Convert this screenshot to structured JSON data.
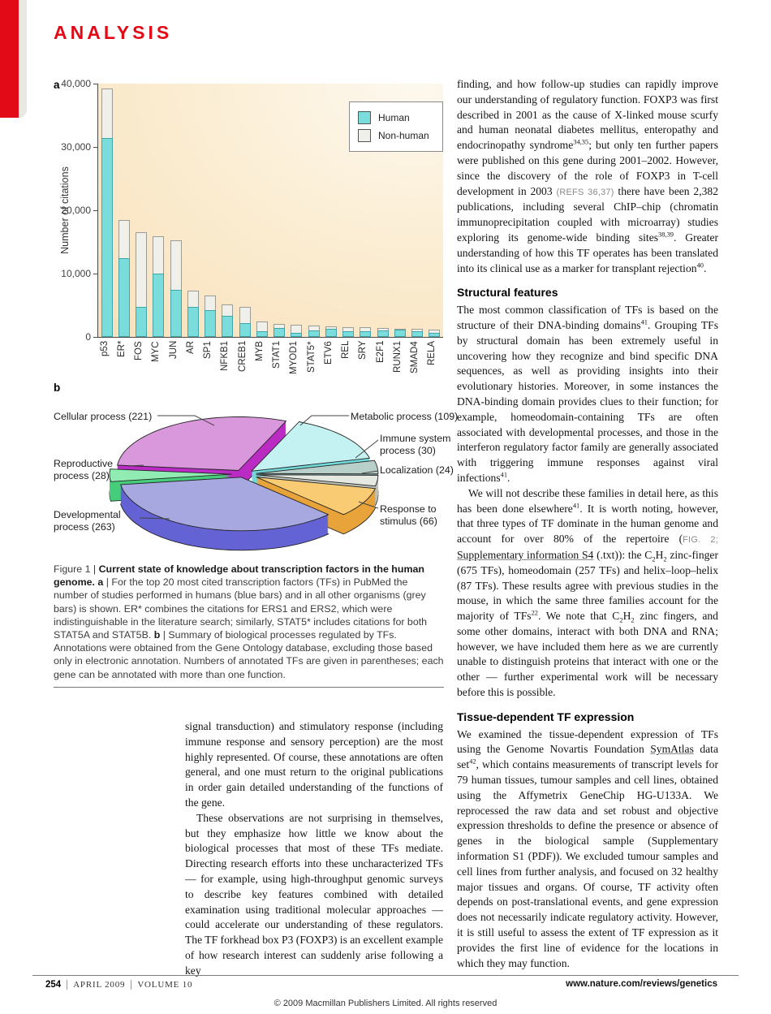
{
  "header": {
    "section_label": "ANALYSIS"
  },
  "figure": {
    "panel_a_label": "a",
    "panel_b_label": "b",
    "caption": "Figure 1 | **Current state of knowledge about transcription factors in the human genome. a** | For the top 20 most cited transcription factors (TFs) in PubMed the number of studies performed in humans (blue bars) and in all other organisms (grey bars) is shown. ER* combines the citations for ERS1 and ERS2, which were indistinguishable in the literature search; similarly, STAT5* includes citations for both STAT5A and STAT5B. **b** | Summary of biological processes regulated by TFs. Annotations were obtained from the Gene Ontology database, excluding those based only in electronic annotation. Numbers of annotated TFs are given in parentheses; each gene can be annotated with more than one function."
  },
  "chart_data": [
    {
      "type": "bar",
      "stacked": true,
      "ylabel": "Number of citations",
      "ylim": [
        0,
        40000
      ],
      "yticks": [
        "0",
        "10,000",
        "20,000",
        "30,000",
        "40,000"
      ],
      "legend_position": "top-right",
      "categories": [
        "p53",
        "ER*",
        "FOS",
        "MYC",
        "JUN",
        "AR",
        "SP1",
        "NFKB1",
        "CREB1",
        "MYB",
        "STAT1",
        "MYOD1",
        "STAT5*",
        "ETV6",
        "REL",
        "SRY",
        "E2F1",
        "RUNX1",
        "SMAD4",
        "RELA"
      ],
      "series": [
        {
          "name": "Human",
          "color": "#7adcdb",
          "values": [
            31400,
            12500,
            4700,
            10000,
            7500,
            4700,
            4200,
            3400,
            2200,
            950,
            1450,
            600,
            1050,
            1350,
            900,
            900,
            1050,
            1150,
            900,
            600
          ]
        },
        {
          "name": "Non-human",
          "color": "#eef0e9",
          "values": [
            7900,
            6000,
            11800,
            5900,
            7700,
            2600,
            2300,
            1700,
            2500,
            1450,
            650,
            1350,
            800,
            350,
            700,
            650,
            400,
            200,
            400,
            500
          ]
        }
      ]
    },
    {
      "type": "pie",
      "style": "3d-exploded",
      "slices": [
        {
          "id": "cellular",
          "label": "Cellular process",
          "value": 221,
          "color": "#d998dc",
          "side_color": "#bb2cc4"
        },
        {
          "id": "metabolic",
          "label": "Metabolic process",
          "value": 109,
          "color": "#c4f1f2",
          "side_color": "#73d8d8"
        },
        {
          "id": "immune",
          "label": "Immune system process",
          "value": 30,
          "color": "#b9cfc9",
          "side_color": "#77a29b"
        },
        {
          "id": "localization",
          "label": "Localization",
          "value": 24,
          "color": "#e6e9e1",
          "side_color": "#bcc1b6"
        },
        {
          "id": "response",
          "label": "Response to stimulus",
          "value": 66,
          "color": "#f9cb72",
          "side_color": "#e8a33a"
        },
        {
          "id": "developmental",
          "label": "Developmental process",
          "value": 263,
          "color": "#a8a8e0",
          "side_color": "#6463d4"
        },
        {
          "id": "reproductive",
          "label": "Reproductive process",
          "value": 28,
          "color": "#90ecb2",
          "side_color": "#47cd7c"
        }
      ]
    }
  ],
  "columns": {
    "left": {
      "p1": "signal transduction) and stimulatory response (including immune response and sensory perception) are the most highly represented. Of course, these annotations are often general, and one must return to the original publications in order gain detailed understanding of the functions of the gene.",
      "p2": "These observations are not surprising in themselves, but they emphasize how little we know about the biological processes that most of these TFs mediate. Directing research efforts into these uncharacterized TFs — for example, using high-throughput genomic surveys to describe key features combined with detailed examination using traditional molecular approaches — could accelerate our understanding of these regulators. The TF forkhead box P3 (FOXP3) is an excellent example of how research interest can suddenly arise following a key"
    },
    "right": {
      "p1": "finding, and how follow-up studies can rapidly improve our understanding of regulatory function. FOXP3 was first described in 2001 as the cause of X-linked mouse scurfy and human neonatal diabetes mellitus, enteropathy and endocrinopathy syndrome^{34,35}; but only ten further papers were published on this gene during 2001–2002. However, since the discovery of the role of FOXP3 in T-cell development in 2003 {{(REFS 36,37)}} there have been 2,382 publications, including several ChIP–chip (chromatin immunoprecipitation coupled with microarray) studies exploring its genome-wide binding sites^{38,39}. Greater understanding of how this TF operates has been translated into its clinical use as a marker for transplant rejection^{40}.",
      "h1": "Structural features",
      "p2": "The most common classification of TFs is based on the structure of their DNA-binding domains^{41}. Grouping TFs by structural domain has been extremely useful in uncovering how they recognize and bind specific DNA sequences, as well as providing insights into their evolutionary histories. Moreover, in some instances the DNA-binding domain provides clues to their function; for example, homeodomain-containing TFs are often associated with developmental processes, and those in the interferon regulatory factor family are generally associated with triggering immune responses against viral infections^{41}.",
      "p3": "We will not describe these families in detail here, as this has been done elsewhere^{41}. It is worth noting, however, that three types of TF dominate in the human genome and account for over 80% of the repertoire ({{FIG. 2;}} [[Supplementary information S4]] (.txt)): the C~{2}H~{2} zinc-finger (675 TFs), homeodomain (257 TFs) and helix–loop–helix (87 TFs). These results agree with previous studies in the mouse, in which the same three families account for the majority of TFs^{22}. We note that C~{2}H~{2} zinc fingers, and some other domains, interact with both DNA and RNA; however, we have included them here as we are currently unable to distinguish proteins that interact with one or the other — further experimental work will be necessary before this is possible.",
      "h2": "Tissue-dependent TF expression",
      "p4": "We examined the tissue-dependent expression of TFs using the Genome Novartis Foundation [[SymAtlas]] data set^{42}, which contains measurements of transcript levels for 79 human tissues, tumour samples and cell lines, obtained using the Affymetrix GeneChip HG-U133A. We reprocessed the raw data and set robust and objective expression thresholds to define the presence or absence of genes in the biological sample (Supplementary information S1 (PDF)). We excluded tumour samples and cell lines from further analysis, and focused on 32 healthy major tissues and organs. Of course, TF activity often depends on post-translational events, and gene expression does not necessarily indicate regulatory activity. However, it is still useful to assess the extent of TF expression as it provides the first line of evidence for the locations in which they may function."
    }
  },
  "footer": {
    "page_number": "254",
    "issue": "APRIL 2009",
    "volume": "VOLUME 10",
    "url": "www.nature.com/reviews/genetics",
    "copyright": "© 2009 Macmillan Publishers Limited. All rights reserved"
  }
}
